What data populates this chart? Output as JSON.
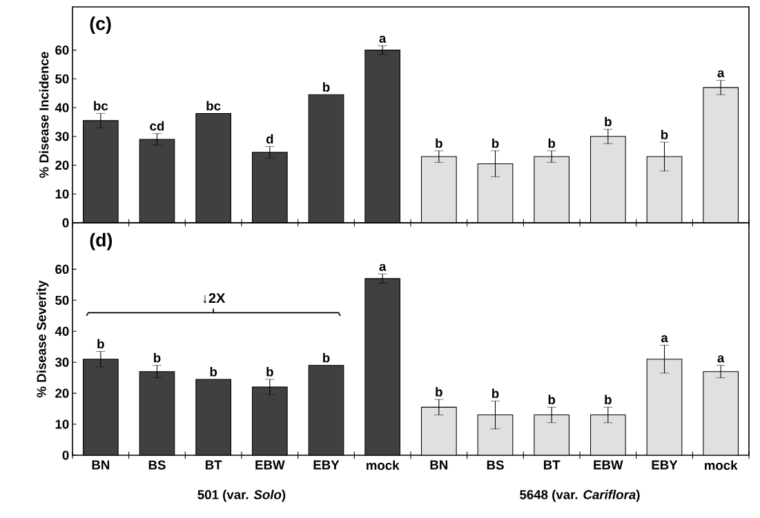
{
  "chart_data": [
    {
      "type": "bar",
      "title": "(c)",
      "ylabel": "% Disease Incidence",
      "categories": [
        null,
        null,
        null,
        null,
        null,
        null,
        null,
        null,
        null,
        null,
        null,
        null
      ],
      "values": [
        35.5,
        29,
        38,
        24.5,
        44.5,
        60,
        23,
        20.5,
        23,
        30,
        23,
        47
      ],
      "errors": [
        2.5,
        2,
        null,
        2,
        null,
        1.5,
        2,
        4.5,
        2,
        2.5,
        5,
        2.5
      ],
      "value_labels": [
        "bc",
        "cd",
        "bc",
        "d",
        "b",
        "a",
        "b",
        "b",
        "b",
        "b",
        "b",
        "a"
      ],
      "colors": [
        "#404040",
        "#404040",
        "#404040",
        "#404040",
        "#404040",
        "#404040",
        "#e0e0e0",
        "#e0e0e0",
        "#e0e0e0",
        "#e0e0e0",
        "#e0e0e0",
        "#e0e0e0"
      ],
      "ylim": [
        0,
        75
      ],
      "yticks": [
        0,
        10,
        20,
        30,
        40,
        50,
        60
      ],
      "tick_labels": "y"
    },
    {
      "type": "bar",
      "title": "(d)",
      "ylabel": "% Disease Severity",
      "categories": [
        "BN",
        "BS",
        "BT",
        "EBW",
        "EBY",
        "mock",
        "BN",
        "BS",
        "BT",
        "EBW",
        "EBY",
        "mock"
      ],
      "values": [
        31,
        27,
        24.5,
        22,
        29,
        57,
        15.5,
        13,
        13,
        13,
        31,
        27
      ],
      "errors": [
        2.5,
        2,
        null,
        2.5,
        null,
        1.5,
        2.5,
        4.5,
        2.5,
        2.5,
        4.5,
        2
      ],
      "value_labels": [
        "b",
        "b",
        "b",
        "b",
        "b",
        "a",
        "b",
        "b",
        "b",
        "b",
        "a",
        "a"
      ],
      "colors": [
        "#404040",
        "#404040",
        "#404040",
        "#404040",
        "#404040",
        "#404040",
        "#e0e0e0",
        "#e0e0e0",
        "#e0e0e0",
        "#e0e0e0",
        "#e0e0e0",
        "#e0e0e0"
      ],
      "ylim": [
        0,
        75
      ],
      "yticks": [
        0,
        10,
        20,
        30,
        40,
        50,
        60
      ],
      "annotations": [
        "↓2X",
        "501 (var. *Solo*)",
        "5648 (var. *Cariflora*)"
      ]
    }
  ]
}
